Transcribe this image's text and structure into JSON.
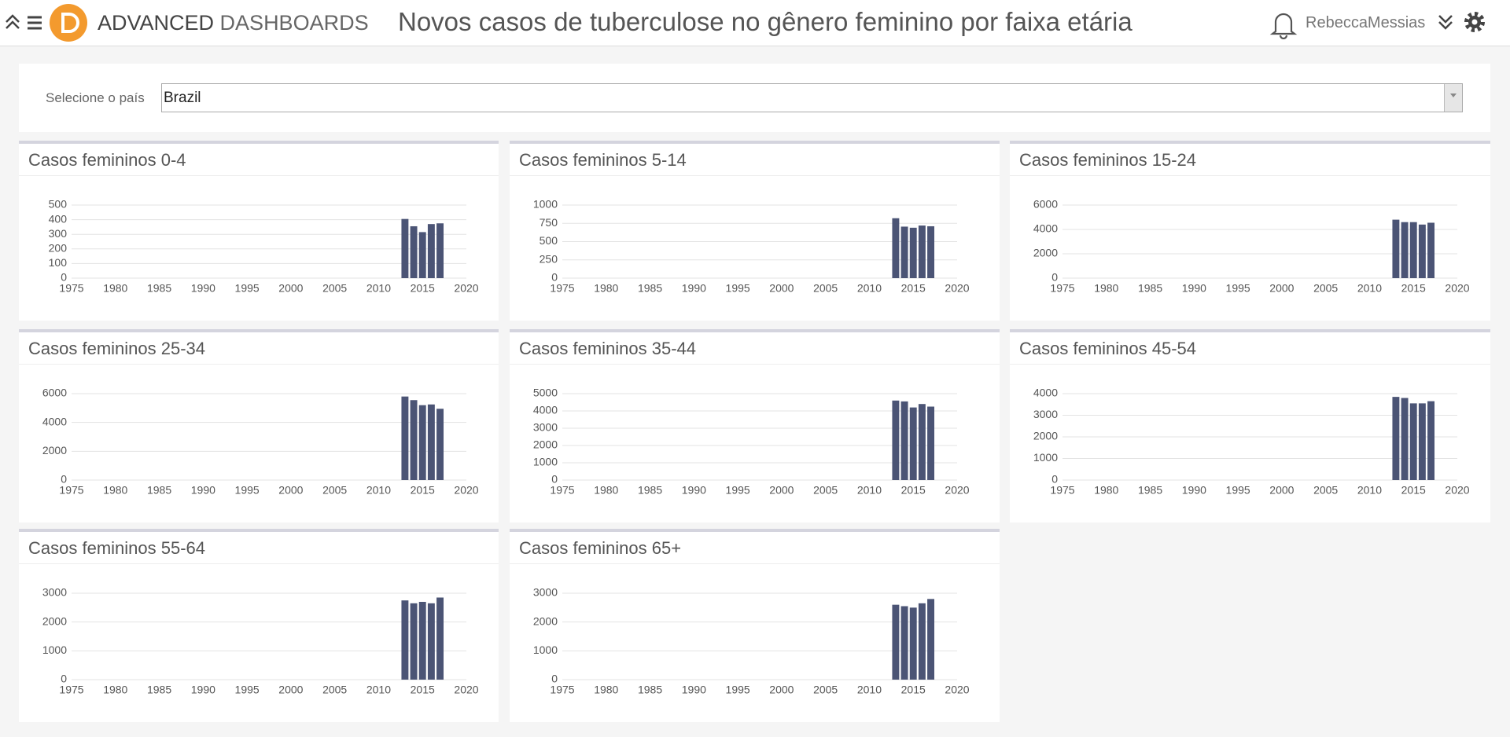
{
  "header": {
    "brand_bold": "ADVANCED",
    "brand_light": "DASHBOARDS",
    "title": "Novos casos de tuberculose no gênero feminino por faixa etária",
    "user": "RebeccaMessias"
  },
  "filter": {
    "label": "Selecione o país",
    "value": "Brazil"
  },
  "chart_data": [
    {
      "type": "bar",
      "title": "Casos femininos 0-4",
      "x": [
        2013,
        2014,
        2015,
        2016,
        2017
      ],
      "values": [
        405,
        355,
        315,
        370,
        375
      ],
      "color": "#4b5475",
      "xlim": [
        1975,
        2020
      ],
      "xticks": [
        1975,
        1980,
        1985,
        1990,
        1995,
        2000,
        2005,
        2010,
        2015,
        2020
      ],
      "ylim": [
        0,
        500
      ],
      "yticks": [
        0,
        100,
        200,
        300,
        400,
        500
      ],
      "grid": true
    },
    {
      "type": "bar",
      "title": "Casos femininos 5-14",
      "x": [
        2013,
        2014,
        2015,
        2016,
        2017
      ],
      "values": [
        820,
        705,
        690,
        720,
        710
      ],
      "color": "#4b5475",
      "xlim": [
        1975,
        2020
      ],
      "xticks": [
        1975,
        1980,
        1985,
        1990,
        1995,
        2000,
        2005,
        2010,
        2015,
        2020
      ],
      "ylim": [
        0,
        1000
      ],
      "yticks": [
        0,
        250,
        500,
        750,
        1000
      ],
      "grid": true
    },
    {
      "type": "bar",
      "title": "Casos femininos 15-24",
      "x": [
        2013,
        2014,
        2015,
        2016,
        2017
      ],
      "values": [
        4800,
        4600,
        4600,
        4400,
        4550
      ],
      "color": "#4b5475",
      "xlim": [
        1975,
        2020
      ],
      "xticks": [
        1975,
        1980,
        1985,
        1990,
        1995,
        2000,
        2005,
        2010,
        2015,
        2020
      ],
      "ylim": [
        0,
        6000
      ],
      "yticks": [
        0,
        2000,
        4000,
        6000
      ],
      "grid": true
    },
    {
      "type": "bar",
      "title": "Casos femininos 25-34",
      "x": [
        2013,
        2014,
        2015,
        2016,
        2017
      ],
      "values": [
        5800,
        5550,
        5200,
        5250,
        4950
      ],
      "color": "#4b5475",
      "xlim": [
        1975,
        2020
      ],
      "xticks": [
        1975,
        1980,
        1985,
        1990,
        1995,
        2000,
        2005,
        2010,
        2015,
        2020
      ],
      "ylim": [
        0,
        6000
      ],
      "yticks": [
        0,
        2000,
        4000,
        6000
      ],
      "grid": true
    },
    {
      "type": "bar",
      "title": "Casos femininos 35-44",
      "x": [
        2013,
        2014,
        2015,
        2016,
        2017
      ],
      "values": [
        4600,
        4550,
        4200,
        4400,
        4250
      ],
      "color": "#4b5475",
      "xlim": [
        1975,
        2020
      ],
      "xticks": [
        1975,
        1980,
        1985,
        1990,
        1995,
        2000,
        2005,
        2010,
        2015,
        2020
      ],
      "ylim": [
        0,
        5000
      ],
      "yticks": [
        0,
        1000,
        2000,
        3000,
        4000,
        5000
      ],
      "grid": true
    },
    {
      "type": "bar",
      "title": "Casos femininos 45-54",
      "x": [
        2013,
        2014,
        2015,
        2016,
        2017
      ],
      "values": [
        3850,
        3800,
        3550,
        3550,
        3650
      ],
      "color": "#4b5475",
      "xlim": [
        1975,
        2020
      ],
      "xticks": [
        1975,
        1980,
        1985,
        1990,
        1995,
        2000,
        2005,
        2010,
        2015,
        2020
      ],
      "ylim": [
        0,
        4000
      ],
      "yticks": [
        0,
        1000,
        2000,
        3000,
        4000
      ],
      "grid": true
    },
    {
      "type": "bar",
      "title": "Casos femininos 55-64",
      "x": [
        2013,
        2014,
        2015,
        2016,
        2017
      ],
      "values": [
        2750,
        2650,
        2700,
        2650,
        2850
      ],
      "color": "#4b5475",
      "xlim": [
        1975,
        2020
      ],
      "xticks": [
        1975,
        1980,
        1985,
        1990,
        1995,
        2000,
        2005,
        2010,
        2015,
        2020
      ],
      "ylim": [
        0,
        3000
      ],
      "yticks": [
        0,
        1000,
        2000,
        3000
      ],
      "grid": true
    },
    {
      "type": "bar",
      "title": "Casos femininos 65+",
      "x": [
        2013,
        2014,
        2015,
        2016,
        2017
      ],
      "values": [
        2600,
        2550,
        2500,
        2650,
        2800
      ],
      "color": "#4b5475",
      "xlim": [
        1975,
        2020
      ],
      "xticks": [
        1975,
        1980,
        1985,
        1990,
        1995,
        2000,
        2005,
        2010,
        2015,
        2020
      ],
      "ylim": [
        0,
        3000
      ],
      "yticks": [
        0,
        1000,
        2000,
        3000
      ],
      "grid": true
    }
  ]
}
